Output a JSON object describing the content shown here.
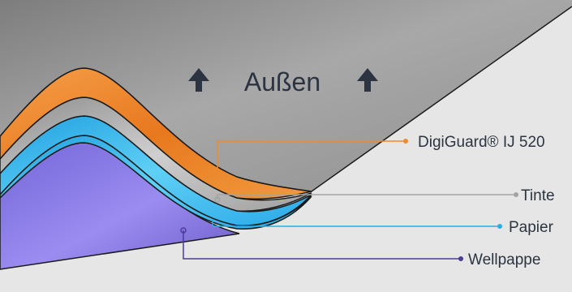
{
  "outside": {
    "label": "Außen",
    "arrow_icon": "arrow-up-icon"
  },
  "layers": [
    {
      "key": "digiguard",
      "label": "DigiGuard® IJ 520",
      "color": "#f08a2c"
    },
    {
      "key": "tinte",
      "label": "Tinte",
      "color": "#a3a3a3"
    },
    {
      "key": "papier",
      "label": "Papier",
      "color": "#29aee6"
    },
    {
      "key": "wellpappe",
      "label": "Wellpappe",
      "color": "#4d3b9a"
    }
  ],
  "colors": {
    "background": "#e6e6e6",
    "top_sheet": "#9a9a9a",
    "outline": "#000000",
    "label_text": "#2b3440"
  }
}
